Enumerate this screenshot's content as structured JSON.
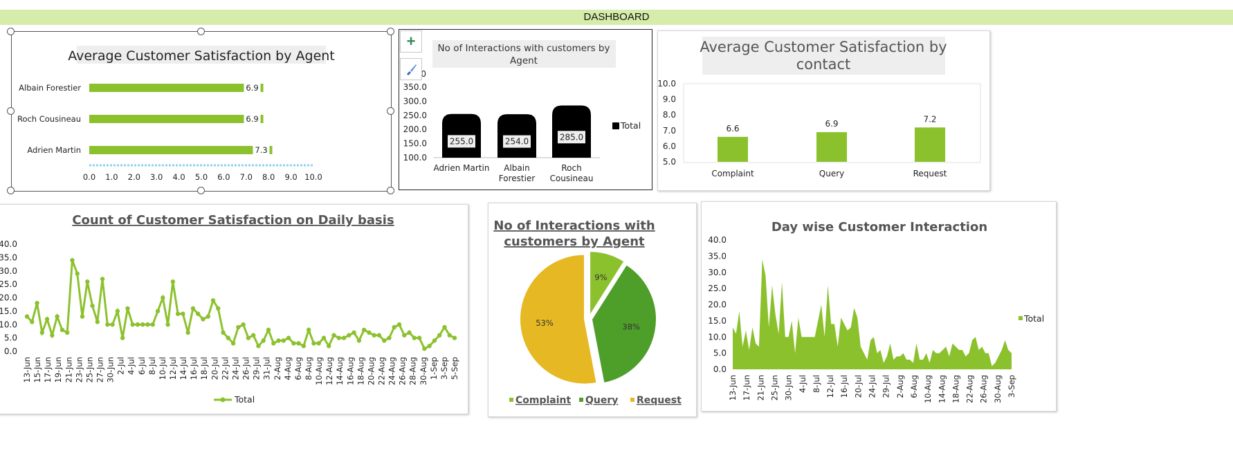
{
  "dashboard": {
    "title": "DASHBOARD"
  },
  "colors": {
    "green": "#8cc12e",
    "dark_green": "#4e9e2a",
    "yellow": "#e6b823",
    "black": "#000000",
    "banner": "#d6ecaa"
  },
  "tools": {
    "add_icon": "plus-icon",
    "style_icon": "brush-icon"
  },
  "chart_data": [
    {
      "id": "agent_satisfaction",
      "type": "bar",
      "orientation": "horizontal",
      "title": "Average Customer Satisfaction by Agent",
      "categories": [
        "Albain Forestier",
        "Roch Cousineau",
        "Adrien Martin"
      ],
      "values": [
        6.9,
        6.9,
        7.3
      ],
      "value_labels": [
        "6.9",
        "6.9",
        "7.3"
      ],
      "xlim": [
        0,
        10
      ],
      "ticks": [
        "0.0",
        "1.0",
        "2.0",
        "3.0",
        "4.0",
        "5.0",
        "6.0",
        "7.0",
        "8.0",
        "9.0",
        "10.0"
      ]
    },
    {
      "id": "agent_interactions",
      "type": "bar",
      "title": "No of Interactions with customers by Agent",
      "categories": [
        "Adrien Martin",
        "Albain Forestier",
        "Roch Cousineau"
      ],
      "category_lines": [
        [
          "Adrien Martin"
        ],
        [
          "Albain",
          "Forestier"
        ],
        [
          "Roch",
          "Cousineau"
        ]
      ],
      "values": [
        255,
        254,
        285
      ],
      "value_labels": [
        "255.0",
        "254.0",
        "285.0"
      ],
      "ylim": [
        100,
        350
      ],
      "ticks": [
        "100.0",
        "150.0",
        "200.0",
        "250.0",
        "300.0",
        "350.0"
      ],
      "top_tick_fragment": "0",
      "legend": [
        "Total"
      ],
      "legend_position": "right"
    },
    {
      "id": "contact_satisfaction",
      "type": "bar",
      "title": "Average Customer Satisfaction by contact",
      "title_lines": [
        "Average Customer Satisfaction by",
        "contact"
      ],
      "categories": [
        "Complaint",
        "Query",
        "Request"
      ],
      "values": [
        6.6,
        6.9,
        7.2
      ],
      "value_labels": [
        "6.6",
        "6.9",
        "7.2"
      ],
      "ylim": [
        5,
        10
      ],
      "ticks": [
        "5.0",
        "6.0",
        "7.0",
        "8.0",
        "9.0",
        "10.0"
      ]
    },
    {
      "id": "daily_satisfaction",
      "type": "line",
      "title": "Count of Customer Satisfaction on Daily basis",
      "ylim": [
        0,
        40
      ],
      "ticks": [
        "0.0",
        "5.0",
        "10.0",
        "15.0",
        "20.0",
        "25.0",
        "30.0",
        "35.0",
        "40.0"
      ],
      "x_labels": [
        "13-Jun",
        "15-Jun",
        "17-Jun",
        "19-Jun",
        "21-Jun",
        "23-Jun",
        "25-Jun",
        "27-Jun",
        "30-Jun",
        "2-Jul",
        "4-Jul",
        "6-Jul",
        "8-Jul",
        "10-Jul",
        "12-Jul",
        "14-Jul",
        "16-Jul",
        "18-Jul",
        "20-Jul",
        "22-Jul",
        "24-Jul",
        "26-Jul",
        "29-Jul",
        "31-Jul",
        "2-Aug",
        "4-Aug",
        "6-Aug",
        "8-Aug",
        "10-Aug",
        "12-Aug",
        "14-Aug",
        "16-Aug",
        "18-Aug",
        "20-Aug",
        "22-Aug",
        "24-Aug",
        "26-Aug",
        "28-Aug",
        "30-Aug",
        "1-Sep",
        "3-Sep",
        "5-Sep"
      ],
      "values": [
        13,
        11,
        18,
        7,
        12,
        6,
        13,
        8,
        7,
        34,
        29,
        13,
        26,
        17,
        11,
        27,
        10,
        10,
        15,
        5,
        16,
        10,
        10,
        10,
        10,
        10,
        15,
        20,
        10,
        26,
        14,
        14,
        7,
        16,
        14,
        12,
        13,
        19,
        16,
        7,
        5,
        3,
        9,
        10,
        5,
        6,
        2,
        4,
        8,
        3,
        4,
        4,
        5,
        3,
        3,
        2,
        8,
        3,
        3,
        5,
        2,
        6,
        5,
        5,
        6,
        7,
        4,
        8,
        7,
        6,
        6,
        4,
        5,
        9,
        10,
        6,
        7,
        5,
        5,
        1,
        2,
        4,
        6,
        9,
        6,
        5
      ],
      "series": [
        {
          "name": "Total"
        }
      ],
      "legend_position": "bottom"
    },
    {
      "id": "contact_share",
      "type": "pie",
      "title": "No of Interactions with customers by Agent",
      "title_lines": [
        "No of Interactions with",
        "customers by Agent"
      ],
      "categories": [
        "Complaint",
        "Query",
        "Request"
      ],
      "values": [
        9,
        38,
        53
      ],
      "value_labels": [
        "9%",
        "38%",
        "53%"
      ],
      "legend_position": "bottom"
    },
    {
      "id": "daywise_interaction",
      "type": "area",
      "title": "Day wise Customer Interaction",
      "ylim": [
        0,
        40
      ],
      "ticks": [
        "0.0",
        "5.0",
        "10.0",
        "15.0",
        "20.0",
        "25.0",
        "30.0",
        "35.0",
        "40.0"
      ],
      "x_labels": [
        "13-Jun",
        "17-Jun",
        "21-Jun",
        "25-Jun",
        "30-Jun",
        "4-Jul",
        "8-Jul",
        "12-Jul",
        "16-Jul",
        "20-Jul",
        "24-Jul",
        "29-Jul",
        "2-Aug",
        "6-Aug",
        "10-Aug",
        "14-Aug",
        "18-Aug",
        "22-Aug",
        "26-Aug",
        "30-Aug",
        "3-Sep"
      ],
      "values": [
        13,
        11,
        18,
        7,
        12,
        6,
        13,
        8,
        7,
        34,
        29,
        13,
        26,
        17,
        11,
        27,
        10,
        10,
        15,
        5,
        16,
        10,
        10,
        10,
        10,
        10,
        15,
        20,
        10,
        26,
        14,
        14,
        7,
        16,
        14,
        12,
        13,
        19,
        16,
        7,
        5,
        3,
        9,
        10,
        5,
        6,
        2,
        4,
        8,
        3,
        4,
        4,
        5,
        3,
        3,
        2,
        8,
        3,
        3,
        5,
        2,
        6,
        5,
        5,
        6,
        7,
        4,
        8,
        7,
        6,
        6,
        4,
        5,
        9,
        10,
        6,
        7,
        5,
        5,
        1,
        2,
        4,
        6,
        9,
        6,
        5
      ],
      "series": [
        {
          "name": "Total"
        }
      ],
      "legend_position": "right"
    }
  ]
}
